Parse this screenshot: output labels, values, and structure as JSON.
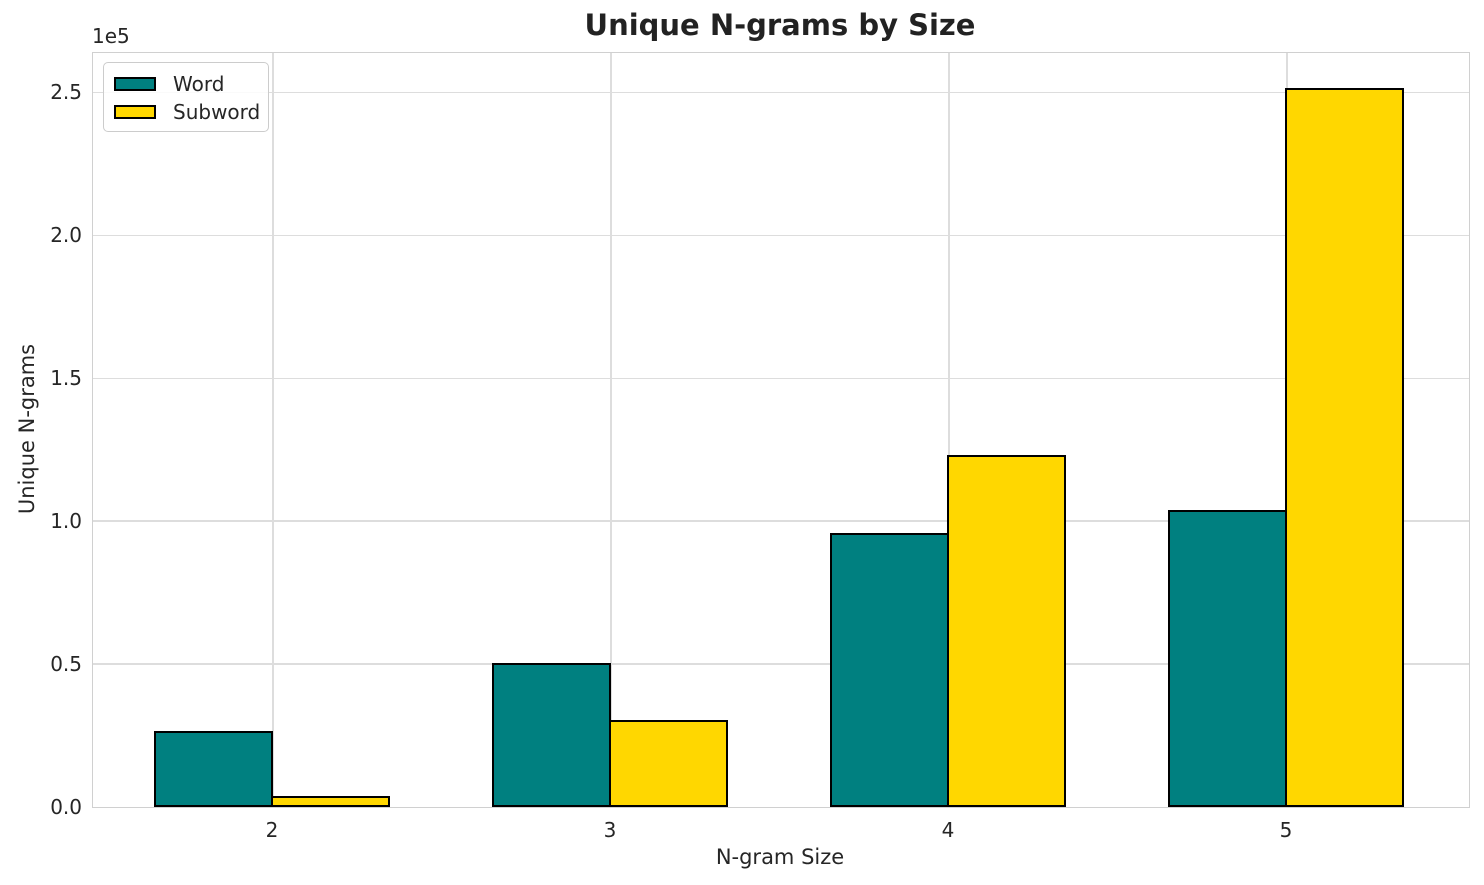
{
  "chart_data": {
    "type": "bar",
    "title": "Unique N-grams by Size",
    "xlabel": "N-gram Size",
    "ylabel": "Unique N-grams",
    "y_offset_label": "1e5",
    "categories": [
      "2",
      "3",
      "4",
      "5"
    ],
    "series": [
      {
        "name": "Word",
        "color": "#008080",
        "values": [
          26500,
          50500,
          96000,
          104000
        ]
      },
      {
        "name": "Subword",
        "color": "#ffd700",
        "values": [
          3800,
          30500,
          123000,
          251500
        ]
      }
    ],
    "bar_edge_color": "#000000",
    "ylim": [
      0,
      264000
    ],
    "yticks": {
      "values": [
        0,
        50000,
        100000,
        150000,
        200000,
        250000
      ],
      "labels": [
        "0.0",
        "0.5",
        "1.0",
        "1.5",
        "2.0",
        "2.5"
      ]
    },
    "grid": true,
    "legend_position": "upper left",
    "colors": {
      "grid": "#dddddd",
      "spine": "#d0d0d0",
      "text": "#262626"
    }
  }
}
